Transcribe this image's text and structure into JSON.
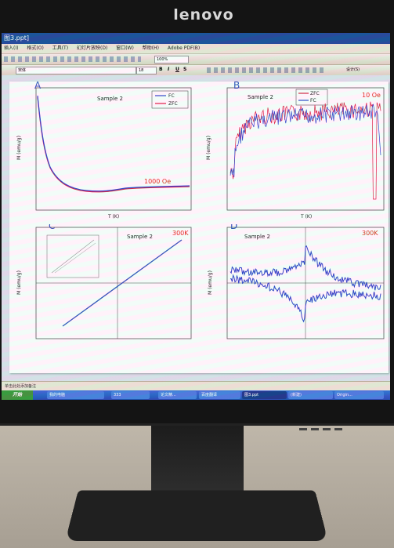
{
  "monitor": {
    "brand": "lenovo"
  },
  "window": {
    "title": "图3.ppt]"
  },
  "menu": {
    "items": [
      "插入(I)",
      "格式(O)",
      "工具(T)",
      "幻灯片放映(D)",
      "窗口(W)",
      "帮助(H)",
      "Adobe PDF(B)"
    ]
  },
  "toolbar": {
    "zoom": "100%"
  },
  "format": {
    "font": "宋体",
    "size": "18",
    "design_label": "设计(S)"
  },
  "statusbar": {
    "text": "单击此处添加备注"
  },
  "taskbar": {
    "start": "开始",
    "tasks": [
      "我的电脑",
      "333",
      "论文精...",
      "百度翻译",
      "图3.ppt",
      "(新建)",
      "Origin..."
    ]
  },
  "panels": [
    {
      "letter": "A",
      "title": "Sample 2",
      "annotation": "1000 Oe",
      "ylabel": "M (emu/g)",
      "xlabel": "T (K)",
      "legend": [
        "FC",
        "ZFC"
      ]
    },
    {
      "letter": "B",
      "title": "Sample 2",
      "annotation": "10 Oe",
      "ylabel": "M (emu/g)",
      "xlabel": "T (K)",
      "legend": [
        "ZFC",
        "FC"
      ]
    },
    {
      "letter": "C",
      "title": "Sample 2",
      "annotation": "300K",
      "ylabel": "M (emu/g)"
    },
    {
      "letter": "D",
      "title": "Sample 2",
      "annotation": "300K",
      "ylabel": "M (emu/g)"
    }
  ],
  "colors": {
    "fc": "#3344cc",
    "zfc": "#dd2244",
    "annotation": "#e0301e"
  }
}
